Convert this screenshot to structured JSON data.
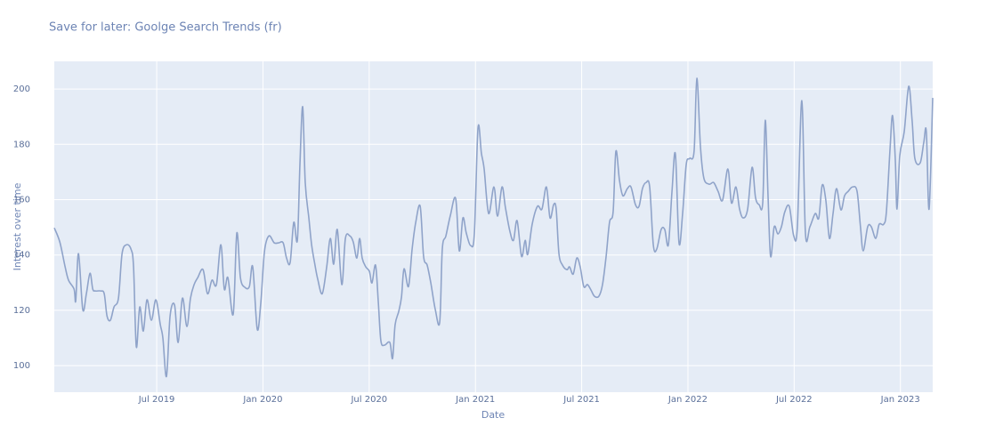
{
  "chart_data": {
    "type": "line",
    "title": "Save for later: Goolge Search Trends (fr)",
    "x_label": "Date",
    "y_label": "Interest over time",
    "xlim": [
      2019.018,
      2023.152
    ],
    "ylim": [
      90.4,
      210
    ],
    "xticks": [
      {
        "value": 2019.5,
        "label": "Jul 2019"
      },
      {
        "value": 2020,
        "label": "Jan 2020"
      },
      {
        "value": 2020.5,
        "label": "Jul 2020"
      },
      {
        "value": 2021,
        "label": "Jan 2021"
      },
      {
        "value": 2021.5,
        "label": "Jul 2021"
      },
      {
        "value": 2022,
        "label": "Jan 2022"
      },
      {
        "value": 2022.5,
        "label": "Jul 2022"
      },
      {
        "value": 2023,
        "label": "Jan 2023"
      }
    ],
    "yticks": [
      100,
      120,
      140,
      160,
      180,
      200
    ],
    "grid": true,
    "series": [
      {
        "color": "#8fa3c9",
        "x": [
          2019.018,
          2019.044,
          2019.069,
          2019.085,
          2019.111,
          2019.119,
          2019.132,
          2019.152,
          2019.169,
          2019.186,
          2019.199,
          2019.211,
          2019.236,
          2019.253,
          2019.266,
          2019.282,
          2019.299,
          2019.32,
          2019.337,
          2019.358,
          2019.379,
          2019.391,
          2019.404,
          2019.42,
          2019.437,
          2019.454,
          2019.475,
          2019.496,
          2019.517,
          2019.529,
          2019.546,
          2019.563,
          2019.584,
          2019.601,
          2019.621,
          2019.642,
          2019.659,
          2019.676,
          2019.693,
          2019.718,
          2019.739,
          2019.76,
          2019.781,
          2019.802,
          2019.818,
          2019.835,
          2019.86,
          2019.877,
          2019.894,
          2019.915,
          2019.936,
          2019.952,
          2019.973,
          2019.99,
          2020.007,
          2020.028,
          2020.053,
          2020.074,
          2020.095,
          2020.111,
          2020.128,
          2020.145,
          2020.162,
          2020.174,
          2020.187,
          2020.199,
          2020.216,
          2020.229,
          2020.245,
          2020.258,
          2020.279,
          2020.3,
          2020.317,
          2020.333,
          2020.35,
          2020.371,
          2020.388,
          2020.409,
          2020.425,
          2020.442,
          2020.455,
          2020.467,
          2020.484,
          2020.501,
          2020.513,
          2020.53,
          2020.543,
          2020.555,
          2020.572,
          2020.597,
          2020.61,
          2020.622,
          2020.639,
          2020.652,
          2020.664,
          2020.685,
          2020.702,
          2020.719,
          2020.74,
          2020.756,
          2020.773,
          2020.79,
          2020.811,
          2020.832,
          2020.844,
          2020.861,
          2020.882,
          2020.907,
          2020.924,
          2020.941,
          2020.957,
          2020.978,
          2020.995,
          2021.012,
          2021.028,
          2021.041,
          2021.062,
          2021.087,
          2021.104,
          2021.125,
          2021.141,
          2021.162,
          2021.179,
          2021.196,
          2021.217,
          2021.234,
          2021.246,
          2021.267,
          2021.292,
          2021.313,
          2021.334,
          2021.351,
          2021.368,
          2021.38,
          2021.393,
          2021.41,
          2021.431,
          2021.443,
          2021.46,
          2021.477,
          2021.493,
          2021.51,
          2021.527,
          2021.544,
          2021.56,
          2021.581,
          2021.598,
          2021.615,
          2021.631,
          2021.648,
          2021.661,
          2021.678,
          2021.694,
          2021.715,
          2021.732,
          2021.753,
          2021.77,
          2021.786,
          2021.803,
          2021.82,
          2021.837,
          2021.853,
          2021.874,
          2021.891,
          2021.908,
          2021.925,
          2021.941,
          2021.958,
          2021.975,
          2021.992,
          2022.008,
          2022.029,
          2022.042,
          2022.059,
          2022.075,
          2022.1,
          2022.121,
          2022.142,
          2022.163,
          2022.188,
          2022.205,
          2022.226,
          2022.243,
          2022.26,
          2022.281,
          2022.302,
          2022.318,
          2022.335,
          2022.352,
          2022.364,
          2022.377,
          2022.389,
          2022.406,
          2022.423,
          2022.44,
          2022.456,
          2022.477,
          2022.498,
          2022.515,
          2022.536,
          2022.553,
          2022.574,
          2022.599,
          2022.616,
          2022.632,
          2022.649,
          2022.666,
          2022.683,
          2022.699,
          2022.72,
          2022.737,
          2022.754,
          2022.775,
          2022.796,
          2022.812,
          2022.825,
          2022.846,
          2022.863,
          2022.884,
          2022.9,
          2022.921,
          2022.934,
          2022.951,
          2022.963,
          2022.976,
          2022.984,
          2022.997,
          2023.018,
          2023.039,
          2023.055,
          2023.068,
          2023.093,
          2023.11,
          2023.122,
          2023.135,
          2023.152
        ],
        "values": [
          149.8,
          144.7,
          135.7,
          130.9,
          127.7,
          123.5,
          140.5,
          120.3,
          126.0,
          133.4,
          127.7,
          127.0,
          127.0,
          126.0,
          118.0,
          116.4,
          121.2,
          124.4,
          140.5,
          143.7,
          142.1,
          135.7,
          106.8,
          121.2,
          112.5,
          123.8,
          116.4,
          123.8,
          114.8,
          110.0,
          96.1,
          118.0,
          121.9,
          108.4,
          124.4,
          114.1,
          124.4,
          129.3,
          131.8,
          134.7,
          126.0,
          130.9,
          129.3,
          143.7,
          127.7,
          131.8,
          118.6,
          147.9,
          131.8,
          128.3,
          128.6,
          135.7,
          113.2,
          122.8,
          141.2,
          146.9,
          144.4,
          144.4,
          144.4,
          138.9,
          137.3,
          151.8,
          145.3,
          172.7,
          193.6,
          166.2,
          153.4,
          143.7,
          136.3,
          131.2,
          126.0,
          135.7,
          146.0,
          136.7,
          149.2,
          129.3,
          146.0,
          146.9,
          144.7,
          138.9,
          146.0,
          138.9,
          135.7,
          134.1,
          129.9,
          136.3,
          122.8,
          109.0,
          107.4,
          108.4,
          102.6,
          114.8,
          119.6,
          124.8,
          135.0,
          128.6,
          142.1,
          151.8,
          157.6,
          139.5,
          136.3,
          129.9,
          120.3,
          115.8,
          142.1,
          146.9,
          154.3,
          160.4,
          141.5,
          153.4,
          147.9,
          143.4,
          147.9,
          185.9,
          176.8,
          171.1,
          155.0,
          164.6,
          154.0,
          164.6,
          157.2,
          148.6,
          145.3,
          152.4,
          139.5,
          145.3,
          140.2,
          151.1,
          157.6,
          156.6,
          164.6,
          153.4,
          158.2,
          156.6,
          140.5,
          136.3,
          134.7,
          135.7,
          133.1,
          138.9,
          135.7,
          128.6,
          129.3,
          127.3,
          125.1,
          125.1,
          129.3,
          139.5,
          151.8,
          155.6,
          177.5,
          166.9,
          161.4,
          164.0,
          164.6,
          158.2,
          157.6,
          164.0,
          166.2,
          164.6,
          143.7,
          142.1,
          149.2,
          149.2,
          143.7,
          163.0,
          176.5,
          144.4,
          155.0,
          172.7,
          174.9,
          177.5,
          203.9,
          179.1,
          167.8,
          165.6,
          166.2,
          163.0,
          159.8,
          171.1,
          158.8,
          164.6,
          156.6,
          153.4,
          156.6,
          171.7,
          160.8,
          158.2,
          158.8,
          188.7,
          161.4,
          139.5,
          150.2,
          147.6,
          150.2,
          155.6,
          157.6,
          146.9,
          150.2,
          195.8,
          147.9,
          150.2,
          155.0,
          153.4,
          165.3,
          159.8,
          146.0,
          155.0,
          164.0,
          156.3,
          161.4,
          163.0,
          164.6,
          163.0,
          150.2,
          141.5,
          150.2,
          150.2,
          146.0,
          151.1,
          151.1,
          155.6,
          178.1,
          190.4,
          174.3,
          156.6,
          175.9,
          184.6,
          201.0,
          188.7,
          174.9,
          173.3,
          180.7,
          184.6,
          156.6,
          196.8
        ]
      }
    ]
  }
}
